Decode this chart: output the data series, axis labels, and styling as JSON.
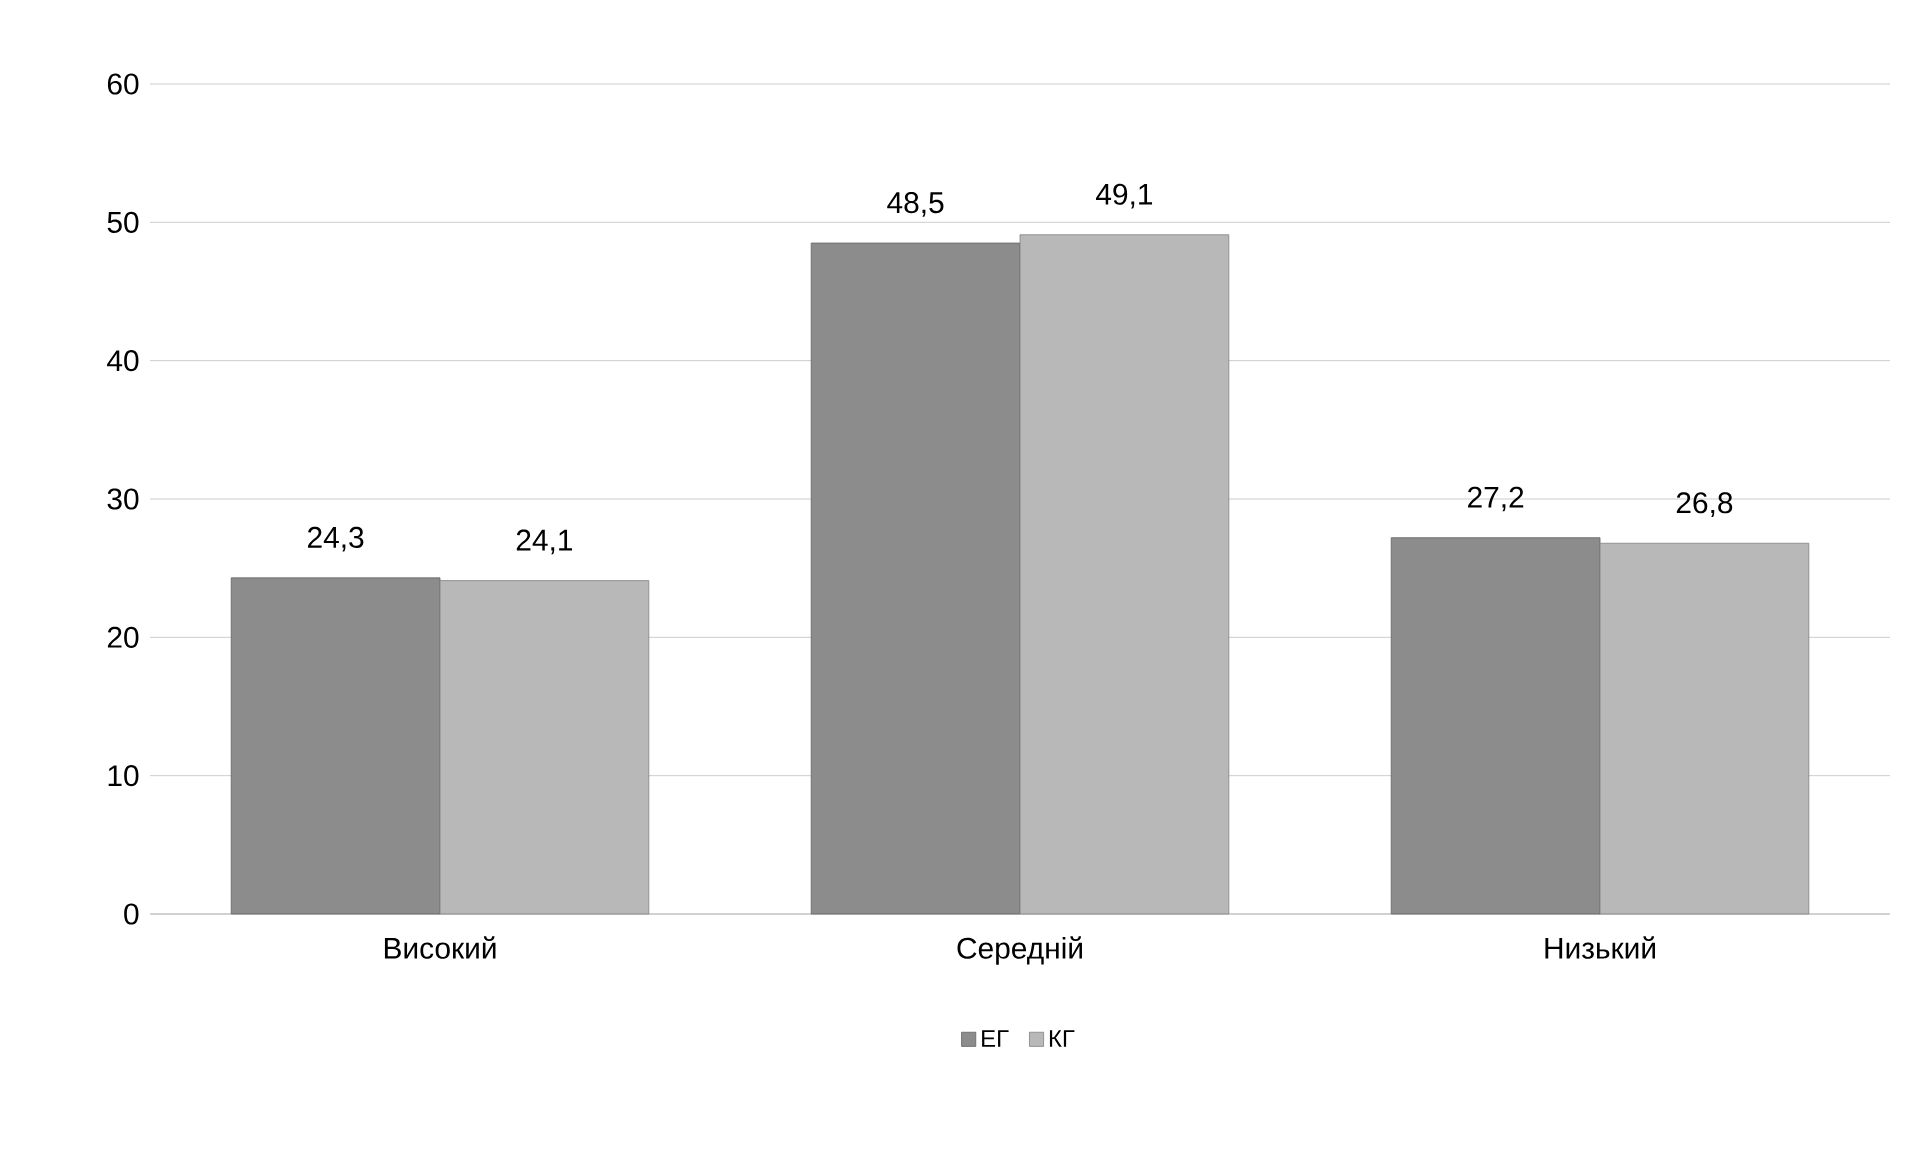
{
  "chart_data": {
    "type": "bar",
    "categories": [
      "Високий",
      "Середній",
      "Низький"
    ],
    "series": [
      {
        "name": "ЕГ",
        "color": "#8c8c8c",
        "values": [
          24.3,
          48.5,
          27.2
        ],
        "value_labels": [
          "24,3",
          "48,5",
          "27,2"
        ]
      },
      {
        "name": "КГ",
        "color": "#b8b8b8",
        "values": [
          24.1,
          49.1,
          26.8
        ],
        "value_labels": [
          "24,1",
          "49,1",
          "26,8"
        ]
      }
    ],
    "ylim": [
      0,
      60
    ],
    "yticks": [
      0,
      10,
      20,
      30,
      40,
      50,
      60
    ],
    "grid": "y",
    "legend": "bottom"
  }
}
